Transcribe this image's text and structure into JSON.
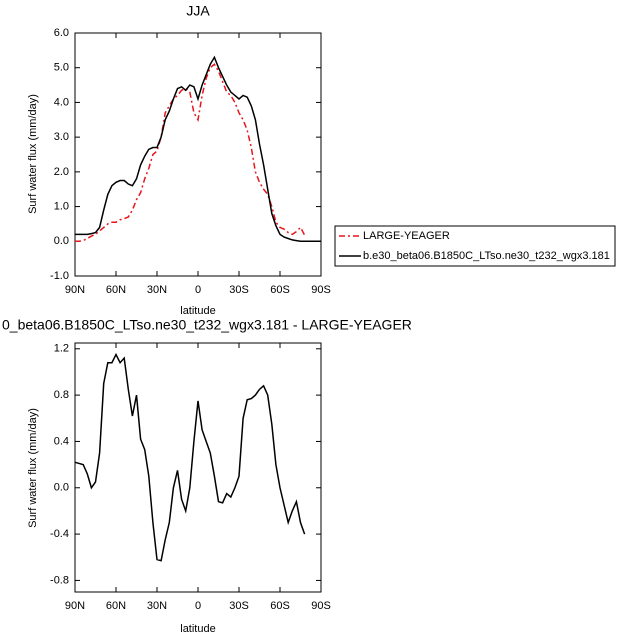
{
  "chart_data": [
    {
      "type": "line",
      "title": "JJA",
      "ylabel": "Surf water flux (mm/day)",
      "xlabel": "latitude",
      "x": [
        90,
        87,
        84,
        81,
        78,
        75,
        72,
        69,
        66,
        63,
        60,
        57,
        54,
        51,
        48,
        45,
        42,
        39,
        36,
        33,
        30,
        27,
        24,
        21,
        18,
        15,
        12,
        9,
        6,
        3,
        0,
        -3,
        -6,
        -9,
        -12,
        -15,
        -18,
        -21,
        -24,
        -27,
        -30,
        -33,
        -36,
        -39,
        -42,
        -45,
        -48,
        -51,
        -54,
        -57,
        -60,
        -63,
        -66,
        -69,
        -72,
        -75,
        -78,
        -81,
        -84,
        -87,
        -90
      ],
      "xlim": [
        90,
        -90
      ],
      "xticks": [
        {
          "value": 90,
          "label": "90N"
        },
        {
          "value": 60,
          "label": "60N"
        },
        {
          "value": 30,
          "label": "30N"
        },
        0,
        {
          "value": -30,
          "label": "30S"
        },
        {
          "value": -60,
          "label": "60S"
        },
        {
          "value": -90,
          "label": "90S"
        }
      ],
      "ylim": [
        -1,
        6
      ],
      "yticks": [
        {
          "value": 6,
          "label": "6.0"
        },
        {
          "value": 5,
          "label": "5.0"
        },
        {
          "value": 4,
          "label": "4.0"
        },
        {
          "value": 3,
          "label": "3.0"
        },
        {
          "value": 2,
          "label": "2.0"
        },
        {
          "value": 1,
          "label": "1.0"
        },
        {
          "value": 0,
          "label": "0.0"
        },
        {
          "value": -1,
          "label": "-1.0"
        }
      ],
      "legend": "right",
      "series": [
        {
          "name": "LARGE-YEAGER",
          "color": "#e8141c",
          "dashed": true,
          "values": [
            0.0,
            0.0,
            0.02,
            0.08,
            0.15,
            0.2,
            0.3,
            0.4,
            0.5,
            0.55,
            0.55,
            0.62,
            0.65,
            0.7,
            0.9,
            1.2,
            1.4,
            1.8,
            2.1,
            2.5,
            2.6,
            3.0,
            3.7,
            3.9,
            4.1,
            4.2,
            4.35,
            4.4,
            4.3,
            3.7,
            3.5,
            4.2,
            4.7,
            5.0,
            5.1,
            4.9,
            4.6,
            4.3,
            4.2,
            4.0,
            3.7,
            3.5,
            3.2,
            2.7,
            2.0,
            1.7,
            1.5,
            1.35,
            1.0,
            0.55,
            0.4,
            0.35,
            0.25,
            0.2,
            0.28,
            0.4,
            0.18,
            null,
            null,
            null,
            null
          ]
        },
        {
          "name": "b.e30_beta06.B1850C_LTso.ne30_t232_wgx3.181",
          "color": "#000000",
          "dashed": false,
          "values": [
            0.2,
            0.2,
            0.2,
            0.2,
            0.22,
            0.25,
            0.4,
            0.9,
            1.35,
            1.6,
            1.7,
            1.75,
            1.75,
            1.65,
            1.6,
            1.8,
            2.2,
            2.45,
            2.65,
            2.7,
            2.7,
            3.0,
            3.5,
            3.75,
            4.1,
            4.4,
            4.45,
            4.35,
            4.5,
            4.45,
            4.1,
            4.5,
            4.8,
            5.1,
            5.3,
            5.0,
            4.75,
            4.5,
            4.3,
            4.2,
            4.1,
            4.2,
            4.15,
            3.9,
            3.5,
            2.8,
            2.2,
            1.5,
            0.8,
            0.45,
            0.2,
            0.12,
            0.08,
            0.04,
            0.02,
            0.0,
            0.0,
            0.0,
            0.0,
            0.0,
            0.0
          ]
        }
      ]
    },
    {
      "type": "line",
      "title": "0_beta06.B1850C_LTso.ne30_t232_wgx3.181 - LARGE-YEAGER",
      "ylabel": "Surf water flux (mm/day)",
      "xlabel": "latitude",
      "x": [
        90,
        87,
        84,
        81,
        78,
        75,
        72,
        69,
        66,
        63,
        60,
        57,
        54,
        51,
        48,
        45,
        42,
        39,
        36,
        33,
        30,
        27,
        24,
        21,
        18,
        15,
        12,
        9,
        6,
        3,
        0,
        -3,
        -6,
        -9,
        -12,
        -15,
        -18,
        -21,
        -24,
        -27,
        -30,
        -33,
        -36,
        -39,
        -42,
        -45,
        -48,
        -51,
        -54,
        -57,
        -60,
        -63,
        -66,
        -69,
        -72,
        -75,
        -78,
        -81,
        -84,
        -87,
        -90
      ],
      "xlim": [
        90,
        -90
      ],
      "xticks": [
        {
          "value": 90,
          "label": "90N"
        },
        {
          "value": 60,
          "label": "60N"
        },
        {
          "value": 30,
          "label": "30N"
        },
        0,
        {
          "value": -30,
          "label": "30S"
        },
        {
          "value": -60,
          "label": "60S"
        },
        {
          "value": -90,
          "label": "90S"
        }
      ],
      "ylim": [
        -0.9,
        1.25
      ],
      "yticks": [
        1.2,
        0.8,
        0.4,
        {
          "value": 0,
          "label": "0.0"
        },
        -0.4,
        -0.8
      ],
      "series": [
        {
          "color": "#000000",
          "dashed": false,
          "values": [
            0.22,
            0.21,
            0.2,
            0.12,
            0.0,
            0.05,
            0.3,
            0.9,
            1.08,
            1.08,
            1.15,
            1.08,
            1.12,
            0.85,
            0.62,
            0.8,
            0.42,
            0.33,
            0.1,
            -0.3,
            -0.62,
            -0.63,
            -0.45,
            -0.3,
            0.0,
            0.15,
            -0.1,
            -0.2,
            0.0,
            0.4,
            0.75,
            0.5,
            0.4,
            0.3,
            0.1,
            -0.12,
            -0.13,
            -0.05,
            -0.08,
            0.0,
            0.1,
            0.6,
            0.76,
            0.77,
            0.8,
            0.85,
            0.88,
            0.8,
            0.55,
            0.2,
            0.0,
            -0.15,
            -0.3,
            -0.2,
            -0.12,
            -0.3,
            -0.4,
            null,
            null,
            null,
            null
          ]
        }
      ]
    }
  ]
}
